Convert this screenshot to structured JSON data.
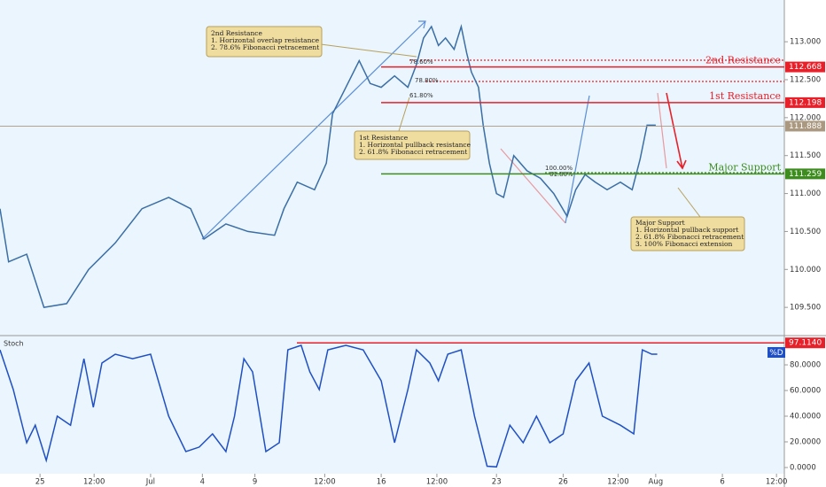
{
  "chart_data": [
    {
      "type": "line",
      "x": [
        0,
        1.1,
        3.4,
        5.6,
        8.5,
        11.3,
        14.7,
        18.1,
        21.5,
        24.3,
        26,
        28.8,
        31.6,
        35,
        36.2,
        37.9,
        40.1,
        41.6,
        42.4,
        44.1,
        45.8,
        47.2,
        48.6,
        50.3,
        52,
        53.1,
        54,
        55,
        55.9,
        56.8,
        57.9,
        58.8,
        59.5,
        60.1,
        61,
        61.6,
        62.4,
        63.3,
        64.2,
        65.5,
        67.2,
        68.9,
        70.6,
        72.3,
        73.4,
        74.6,
        75.9,
        77.4,
        79.1,
        80.6,
        81.6,
        82.5,
        83.6
      ],
      "values": [
        110.8,
        110.1,
        110.2,
        109.5,
        109.55,
        110,
        110.35,
        110.8,
        110.95,
        110.8,
        110.4,
        110.6,
        110.5,
        110.45,
        110.8,
        111.15,
        111.05,
        111.4,
        112.05,
        112.4,
        112.75,
        112.45,
        112.4,
        112.55,
        112.4,
        112.7,
        113.05,
        113.2,
        112.95,
        113.05,
        112.9,
        113.2,
        112.85,
        112.6,
        112.4,
        111.9,
        111.4,
        111,
        110.95,
        111.5,
        111.3,
        111.2,
        111,
        110.7,
        111.05,
        111.25,
        111.15,
        111.05,
        111.15,
        111.05,
        111.45,
        111.9,
        111.9
      ],
      "color": "#3a6ea5",
      "xlim": [
        0,
        100
      ],
      "xticks": [
        {
          "value": 5.1,
          "label": "25"
        },
        {
          "value": 12,
          "label": "12:00"
        },
        {
          "value": 19.2,
          "label": "Jul"
        },
        {
          "value": 25.8,
          "label": "4"
        },
        {
          "value": 32.5,
          "label": "9"
        },
        {
          "value": 41.4,
          "label": "12:00"
        },
        {
          "value": 48.6,
          "label": "16"
        },
        {
          "value": 55.7,
          "label": "12:00"
        },
        {
          "value": 63.3,
          "label": "23"
        },
        {
          "value": 71.8,
          "label": "26"
        },
        {
          "value": 78.8,
          "label": "12:00"
        },
        {
          "value": 83.6,
          "label": "Aug"
        },
        {
          "value": 92.1,
          "label": "6"
        },
        {
          "value": 99,
          "label": "12:00"
        }
      ],
      "ylim": [
        109.14,
        113.55
      ],
      "yticks": [
        {
          "value": 109.5,
          "label": "109.500"
        },
        {
          "value": 110,
          "label": "110.000"
        },
        {
          "value": 110.5,
          "label": "110.500"
        },
        {
          "value": 111,
          "label": "111.000"
        },
        {
          "value": 111.5,
          "label": "111.500"
        },
        {
          "value": 112,
          "label": "112.000"
        },
        {
          "value": 112.5,
          "label": "112.500"
        },
        {
          "value": 113,
          "label": "113.000"
        }
      ],
      "levels": [
        {
          "name": "2nd Resistance",
          "value": 112.668,
          "color": "#e8202a"
        },
        {
          "name": "1st Resistance",
          "value": 112.198,
          "color": "#e8202a"
        },
        {
          "name": "Major Support",
          "value": 111.259,
          "color": "#3c8c1e"
        }
      ],
      "last": {
        "value": 111.888,
        "color": "#aa9980"
      }
    },
    {
      "type": "line",
      "title": "Stoch",
      "x": [
        0,
        1.7,
        3.4,
        4.5,
        5.9,
        7.3,
        9,
        10.7,
        11.9,
        13,
        14.7,
        16.9,
        19.2,
        21.5,
        23.7,
        25.4,
        27.1,
        28.8,
        29.9,
        31.1,
        32.2,
        33.9,
        35.6,
        36.7,
        38.4,
        39.5,
        40.7,
        41.8,
        44.1,
        46.3,
        48.6,
        50.3,
        52,
        53.1,
        54.8,
        55.9,
        57.1,
        58.8,
        60.5,
        62.1,
        63.3,
        65,
        66.7,
        68.4,
        70.1,
        71.8,
        73.4,
        75.1,
        76.8,
        79.1,
        80.8,
        81.9,
        83.1,
        83.8
      ],
      "series": [
        {
          "name": "%D",
          "color": "#1f4fc4",
          "values": [
            91.7,
            60.7,
            19.3,
            33,
            5.5,
            40,
            33,
            84.8,
            46.9,
            81.4,
            88.3,
            84.8,
            88.3,
            40,
            12.4,
            15.9,
            26.2,
            12.4,
            40,
            84.8,
            74.5,
            12.4,
            19.3,
            91.7,
            95.2,
            74.5,
            60.7,
            91.7,
            95.2,
            91.7,
            67.6,
            19.3,
            60.7,
            91.7,
            81.4,
            67.6,
            88.3,
            91.7,
            40,
            1,
            0.5,
            33,
            19.3,
            40,
            19.3,
            26.2,
            67.6,
            81.4,
            40,
            33,
            26.2,
            91.7,
            88.3,
            88.3
          ]
        }
      ],
      "xlim": [
        0,
        100
      ],
      "ylim": [
        -13.8,
        102.1
      ],
      "yticks": [
        {
          "value": 0,
          "label": "0.0000"
        },
        {
          "value": 20,
          "label": "20.0000"
        },
        {
          "value": 40,
          "label": "40.0000"
        },
        {
          "value": 60,
          "label": "60.0000"
        },
        {
          "value": 80,
          "label": "80.0000"
        }
      ],
      "levels": [
        {
          "value": 97.114,
          "label": "97.1140",
          "color": "#e8202a"
        }
      ]
    }
  ],
  "annotations": [
    {
      "lines": [
        "2nd Resistance",
        "1. Horizontal overlap resistance",
        "2. 78.6% Fibonacci retracement"
      ]
    },
    {
      "lines": [
        "1st Resistance",
        "1. Horizontal pullback resistance",
        "2.  61.8% Fibonacci retracement"
      ]
    },
    {
      "lines": [
        "Major Support",
        "1. Horizontal pullback support",
        "2.  61.8% Fibonacci retracement",
        "3.  100% Fibonacci extension"
      ]
    }
  ],
  "fib_labels": [
    "78.60%",
    "78.80%",
    "61.80%",
    "100.00%",
    "61.80%"
  ]
}
